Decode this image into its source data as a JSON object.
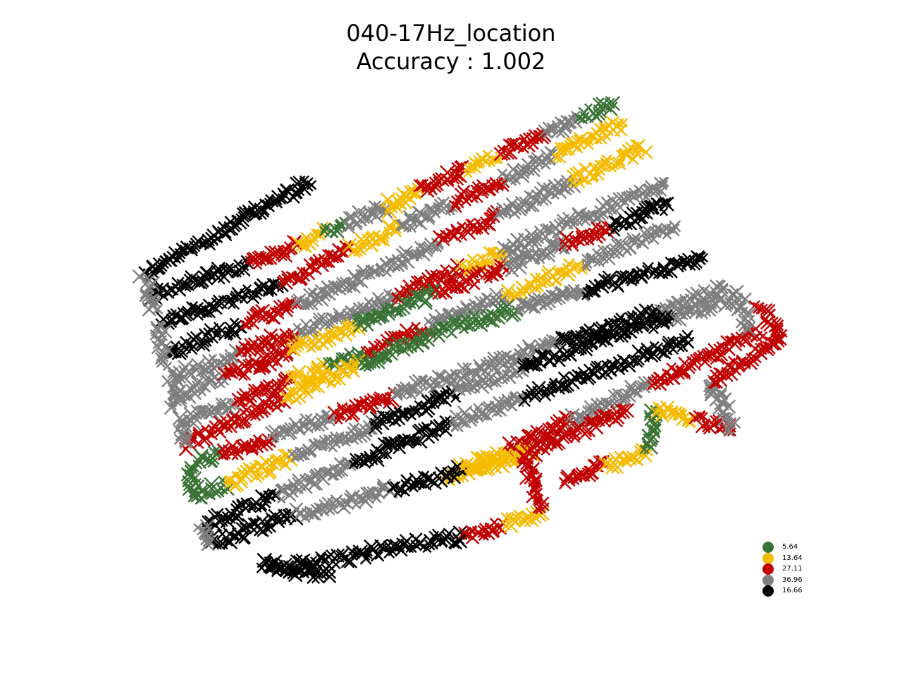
{
  "chart_data": {
    "type": "scatter",
    "title": "040-17Hz_location",
    "subtitle": "Accuracy : 1.002",
    "axes_visible": false,
    "marker": "x",
    "legend_position": "lower-right",
    "legend": [
      {
        "label": "5.64",
        "color": "#3a7336"
      },
      {
        "label": "13.64",
        "color": "#f5bb00"
      },
      {
        "label": "27.11",
        "color": "#c00000"
      },
      {
        "label": "36.96",
        "color": "#7f7f7f"
      },
      {
        "label": "16.66",
        "color": "#000000"
      }
    ]
  }
}
